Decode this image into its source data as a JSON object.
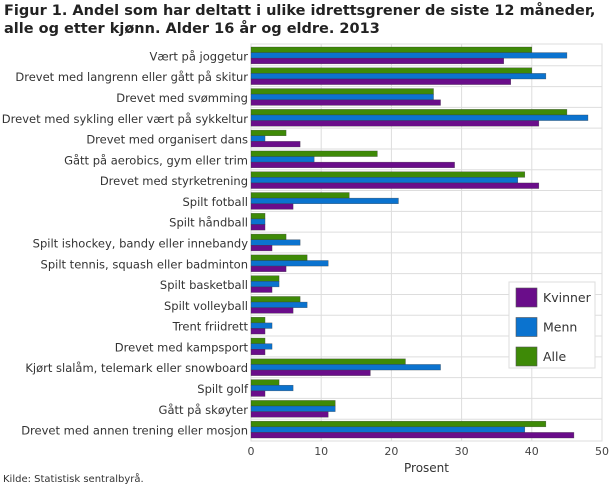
{
  "chart_data": {
    "type": "bar",
    "orientation": "horizontal",
    "title": "Figur 1. Andel som har deltatt i ulike idrettsgrener de siste 12 måneder, alle og etter kjønn. Alder 16 år og eldre. 2013",
    "xlabel": "Prosent",
    "xlim": [
      0,
      50
    ],
    "xticks": [
      0,
      10,
      20,
      30,
      40,
      50
    ],
    "grid": true,
    "legend_position": "right",
    "categories": [
      "Vært på joggetur",
      "Drevet med langrenn eller gått på skitur",
      "Drevet med svømming",
      "Drevet med sykling eller vært på sykkeltur",
      "Drevet med organisert dans",
      "Gått på aerobics, gym eller trim",
      "Drevet med styrketrening",
      "Spilt fotball",
      "Spilt håndball",
      "Spilt ishockey, bandy eller innebandy",
      "Spilt tennis, squash eller badminton",
      "Spilt basketball",
      "Spilt volleyball",
      "Trent friidrett",
      "Drevet med kampsport",
      "Kjørt slalåm, telemark eller snowboard",
      "Spilt golf",
      "Gått på skøyter",
      "Drevet med annen trening eller mosjon"
    ],
    "series": [
      {
        "name": "Kvinner",
        "color": "#6a0d8a",
        "values": [
          36,
          37,
          27,
          41,
          7,
          29,
          41,
          6,
          2,
          3,
          5,
          3,
          6,
          2,
          2,
          17,
          2,
          11,
          46
        ]
      },
      {
        "name": "Menn",
        "color": "#0b73cf",
        "values": [
          45,
          42,
          26,
          48,
          2,
          9,
          38,
          21,
          2,
          7,
          11,
          4,
          8,
          3,
          3,
          27,
          6,
          12,
          39
        ]
      },
      {
        "name": "Alle",
        "color": "#3e8a07",
        "values": [
          40,
          40,
          26,
          45,
          5,
          18,
          39,
          14,
          2,
          5,
          8,
          4,
          7,
          2,
          2,
          22,
          4,
          12,
          42
        ]
      }
    ]
  },
  "source": "Kilde: Statistisk sentralbyrå."
}
